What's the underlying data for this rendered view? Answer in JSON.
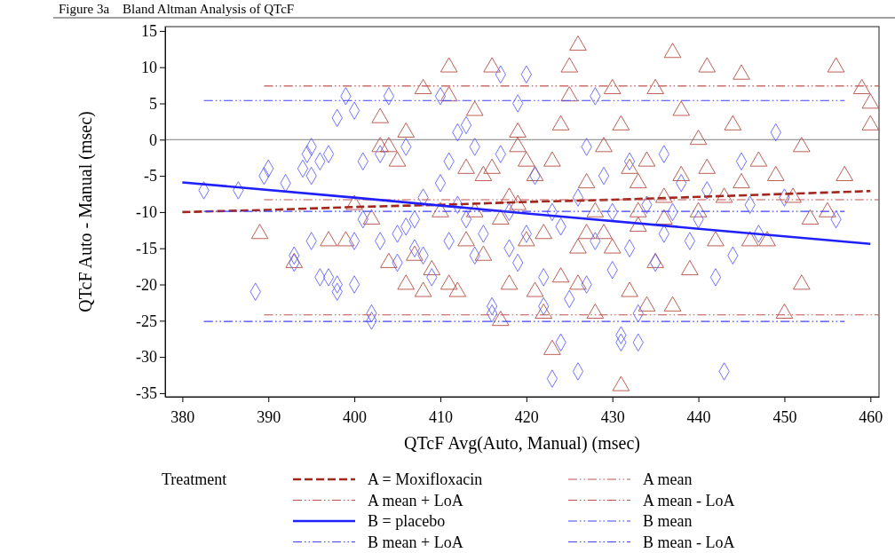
{
  "chart_data": {
    "type": "scatter",
    "title": "Figure 3a    Bland Altman Analysis of QTcF",
    "xlabel": "QTcF Avg(Auto, Manual) (msec)",
    "ylabel": "QTcF Auto - Manual (msec)",
    "legend_title": "Treatment",
    "legend": "bottom",
    "grid": false,
    "xlim": [
      378,
      461
    ],
    "xticks": [
      380,
      390,
      400,
      410,
      420,
      430,
      440,
      450,
      460
    ],
    "ylim": [
      -35.5,
      15.6
    ],
    "yticks": [
      -35,
      -30,
      -25,
      -20,
      -15,
      -10,
      -5,
      0,
      5,
      10,
      15
    ],
    "ref_lines": [
      {
        "axis": "y",
        "value": 0,
        "color": "#808080"
      }
    ],
    "series": [
      {
        "marker": "triangle",
        "color": "#b0443a",
        "x": [
          389,
          393,
          397,
          399,
          400,
          402,
          403,
          403,
          404,
          404,
          405,
          406,
          406,
          407,
          408,
          408,
          409,
          410,
          411,
          411,
          411,
          412,
          413,
          413,
          414,
          414,
          415,
          415,
          416,
          416,
          417,
          417,
          418,
          418,
          419,
          419,
          420,
          420,
          421,
          421,
          422,
          422,
          423,
          423,
          424,
          424,
          425,
          425,
          426,
          426,
          427,
          427,
          428,
          428,
          429,
          430,
          430,
          431,
          431,
          432,
          432,
          433,
          433,
          434,
          434,
          435,
          435,
          436,
          436,
          437,
          437,
          438,
          438,
          439,
          440,
          440,
          441,
          441,
          442,
          443,
          444,
          445,
          445,
          446,
          447,
          448,
          449,
          450,
          451,
          452,
          452,
          453,
          455,
          456,
          457,
          459,
          460,
          460,
          433,
          429,
          426,
          419
        ],
        "values": [
          -13,
          -17,
          -14,
          -14,
          -9,
          -11,
          3,
          -1,
          -1,
          -17,
          -3,
          1,
          -20,
          -16,
          7,
          -21,
          -18,
          -10,
          10,
          6,
          -20,
          -21,
          -14,
          -4,
          -10,
          4,
          -5,
          -16,
          10,
          -4,
          -11,
          -25,
          -8,
          -20,
          1,
          -1,
          -14,
          -3,
          -21,
          -5,
          -13,
          -24,
          -29,
          -3,
          -19,
          2,
          6,
          10,
          13,
          -20,
          -13,
          -6,
          -10,
          -24,
          -1,
          7,
          -15,
          -34,
          2,
          -4,
          -21,
          -6,
          -12,
          -3,
          -23,
          7,
          -17,
          -8,
          -11,
          12,
          -23,
          4,
          -5,
          -18,
          -10,
          0,
          10,
          -4,
          -14,
          -8,
          2,
          9,
          -6,
          -14,
          -3,
          -14,
          -5,
          -24,
          -8,
          -20,
          -1,
          -11,
          -10,
          10,
          -5,
          7,
          5,
          2,
          -10,
          -13,
          -15,
          -9
        ]
      },
      {
        "marker": "diamond",
        "color": "#5a5aff",
        "x": [
          382.5,
          386.5,
          388.5,
          389.5,
          390,
          392,
          393,
          393,
          394,
          394.5,
          395,
          395,
          395,
          396,
          396,
          397,
          397,
          398,
          398,
          398,
          399,
          400,
          400,
          400,
          401,
          401,
          402,
          402,
          403,
          403,
          404,
          405,
          405,
          406,
          406,
          407,
          407,
          408,
          408,
          409,
          410,
          410,
          411,
          411,
          412,
          412,
          413,
          413,
          414,
          414,
          415,
          416,
          416,
          417,
          417,
          418,
          418,
          419,
          419,
          420,
          420,
          421,
          422,
          422,
          423,
          423,
          424,
          424,
          425,
          426,
          426,
          427,
          427,
          428,
          428,
          429,
          430,
          430,
          431,
          431,
          432,
          432,
          433,
          433,
          434,
          435,
          436,
          436,
          437,
          438,
          439,
          440,
          441,
          442,
          443,
          444,
          445,
          446,
          447,
          449,
          450,
          456
        ],
        "values": [
          -7,
          -7,
          -21,
          -5,
          -4,
          -6,
          -17,
          -16,
          -4,
          -2,
          -1,
          -5,
          -14,
          -19,
          -3,
          -2,
          -19,
          -21,
          3,
          -20,
          6,
          4,
          -20,
          -14,
          -11,
          -3,
          -24,
          -25,
          -14,
          -2,
          6,
          -17,
          -13,
          -1,
          -12,
          -11,
          -15,
          -8,
          -16,
          -19,
          6,
          -6,
          -3,
          -14,
          1,
          -9,
          2,
          -11,
          -1,
          -16,
          -13,
          -23,
          -24,
          9,
          -2,
          -10,
          -15,
          5,
          -17,
          9,
          -13,
          -5,
          -23,
          -19,
          -10,
          -33,
          -28,
          -12,
          -22,
          -32,
          -8,
          -1,
          -20,
          6,
          -14,
          -5,
          -10,
          -18,
          -27,
          -28,
          -3,
          -15,
          -28,
          -24,
          -9,
          -17,
          -2,
          -13,
          -10,
          -6,
          -14,
          -11,
          -7,
          -19,
          -32,
          -16,
          -3,
          -9,
          -13,
          1,
          -8,
          -11
        ]
      },
      {
        "type": "line",
        "name": "A = Moxifloxacin",
        "line_style": "dashed",
        "color": "#a0281e",
        "x": [
          380,
          390,
          400,
          410,
          420,
          430,
          440,
          450,
          460
        ],
        "values": [
          -10,
          -9.7,
          -9.3,
          -9,
          -8.6,
          -8.3,
          -7.9,
          -7.5,
          -7.1
        ]
      },
      {
        "type": "line",
        "name": "A mean",
        "line_style": "dotted",
        "color": "#c0504d",
        "x": [
          389.5,
          461
        ],
        "values": [
          -8.3,
          -8.3
        ]
      },
      {
        "type": "line",
        "name": "A mean + LoA",
        "line_style": "dotted",
        "color": "#c0504d",
        "x": [
          389.5,
          461
        ],
        "values": [
          7.4,
          7.4
        ]
      },
      {
        "type": "line",
        "name": "A mean - LoA",
        "line_style": "dotted",
        "color": "#c0504d",
        "x": [
          389.5,
          461
        ],
        "values": [
          -24.2,
          -24.2
        ]
      },
      {
        "type": "line",
        "name": "B = placebo",
        "line_style": "solid",
        "color": "#2020ff",
        "x": [
          380,
          400,
          420,
          440,
          460
        ],
        "values": [
          -5.9,
          -8,
          -10.2,
          -12.3,
          -14.4
        ]
      },
      {
        "type": "line",
        "name": "B mean",
        "line_style": "dotted",
        "color": "#4040ff",
        "x": [
          382.5,
          457
        ],
        "values": [
          -9.9,
          -9.9
        ]
      },
      {
        "type": "line",
        "name": "B mean + LoA",
        "line_style": "dotted",
        "color": "#4040ff",
        "x": [
          382.5,
          457
        ],
        "values": [
          5.4,
          5.4
        ]
      },
      {
        "type": "line",
        "name": "B mean - LoA",
        "line_style": "dotted",
        "color": "#4040ff",
        "x": [
          382.5,
          457
        ],
        "values": [
          -25.1,
          -25.1
        ]
      }
    ]
  }
}
